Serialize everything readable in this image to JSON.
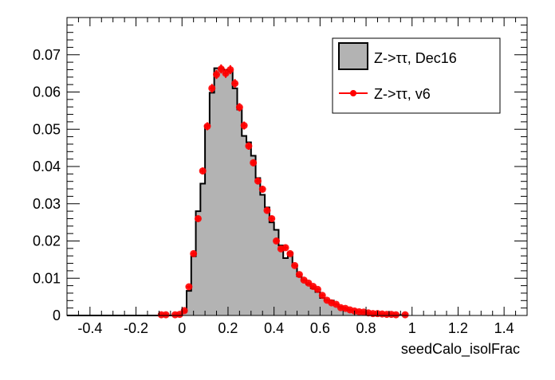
{
  "chart_data": {
    "type": "histogram",
    "title": "",
    "xlabel": "seedCalo_isolFrac",
    "ylabel": "",
    "xlim": [
      -0.5,
      1.5
    ],
    "ylim": [
      0,
      0.08
    ],
    "grid": false,
    "legend_placement": "top-right",
    "x_ticks": [
      "-0.4",
      "-0.2",
      "0",
      "0.2",
      "0.4",
      "0.6",
      "0.8",
      "1",
      "1.2",
      "1.4"
    ],
    "y_ticks": [
      "0",
      "0.01",
      "0.02",
      "0.03",
      "0.04",
      "0.05",
      "0.06",
      "0.07"
    ],
    "bin_width": 0.02,
    "series": [
      {
        "name": "Z->ττ, Dec16",
        "style": "filled-histogram",
        "fill": "#b3b3b3",
        "line": "#000000",
        "bin_low_edges": [
          0.0,
          0.02,
          0.04,
          0.06,
          0.08,
          0.1,
          0.12,
          0.14,
          0.16,
          0.18,
          0.2,
          0.22,
          0.24,
          0.26,
          0.28,
          0.3,
          0.32,
          0.34,
          0.36,
          0.38,
          0.4,
          0.42,
          0.44,
          0.46,
          0.48,
          0.5,
          0.52,
          0.54,
          0.56,
          0.58,
          0.6,
          0.62,
          0.64,
          0.66,
          0.68,
          0.7,
          0.72,
          0.74,
          0.76,
          0.78,
          0.8,
          0.82,
          0.84,
          0.86,
          0.88,
          0.9,
          0.92,
          0.94
        ],
        "values": [
          0.001,
          0.0066,
          0.0159,
          0.028,
          0.0354,
          0.051,
          0.0598,
          0.0664,
          0.0664,
          0.066,
          0.0655,
          0.061,
          0.0553,
          0.0482,
          0.0465,
          0.0429,
          0.0369,
          0.0324,
          0.029,
          0.025,
          0.023,
          0.0188,
          0.0154,
          0.0169,
          0.0134,
          0.0105,
          0.0095,
          0.0084,
          0.0073,
          0.0063,
          0.0047,
          0.0041,
          0.004,
          0.003,
          0.0023,
          0.0019,
          0.0015,
          0.0014,
          0.001,
          0.0008,
          0.0006,
          0.0005,
          0.0004,
          0.0003,
          0.0002,
          0.0002,
          0.0001,
          0.0001
        ]
      },
      {
        "name": "Z->ττ, v6",
        "style": "markers-with-errors",
        "color": "#ff0000",
        "x": [
          -0.09,
          -0.07,
          -0.03,
          -0.01,
          0.01,
          0.03,
          0.05,
          0.07,
          0.09,
          0.11,
          0.13,
          0.15,
          0.17,
          0.19,
          0.21,
          0.23,
          0.25,
          0.27,
          0.29,
          0.31,
          0.33,
          0.35,
          0.37,
          0.39,
          0.41,
          0.43,
          0.45,
          0.47,
          0.49,
          0.51,
          0.53,
          0.55,
          0.57,
          0.59,
          0.61,
          0.63,
          0.65,
          0.67,
          0.69,
          0.71,
          0.73,
          0.75,
          0.77,
          0.79,
          0.81,
          0.83,
          0.85,
          0.87,
          0.89,
          0.91,
          0.93,
          0.97
        ],
        "values": [
          0.0002,
          0.0002,
          0.0002,
          0.0003,
          0.0013,
          0.0077,
          0.0166,
          0.026,
          0.0388,
          0.0508,
          0.061,
          0.0647,
          0.0662,
          0.065,
          0.066,
          0.0623,
          0.0559,
          0.051,
          0.0455,
          0.041,
          0.0361,
          0.0339,
          0.0282,
          0.026,
          0.02,
          0.0179,
          0.0182,
          0.0166,
          0.0134,
          0.011,
          0.0095,
          0.0087,
          0.0078,
          0.007,
          0.0054,
          0.0041,
          0.0034,
          0.003,
          0.0021,
          0.0019,
          0.0015,
          0.0012,
          0.001,
          0.0009,
          0.0007,
          0.0005,
          0.0005,
          0.0004,
          0.0003,
          0.0003,
          0.0002,
          0.0002
        ]
      }
    ]
  }
}
